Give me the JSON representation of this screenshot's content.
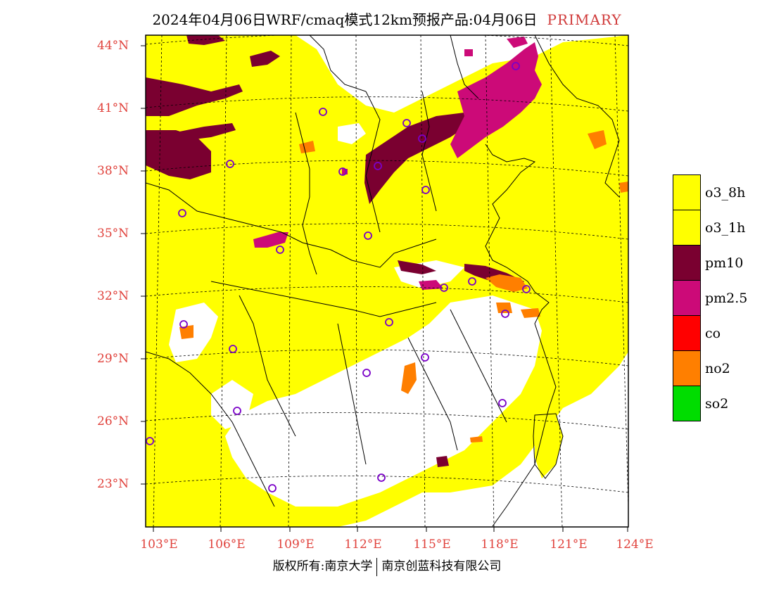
{
  "title": {
    "text": "2024年04月06日WRF/cmaq模式12km预报产品:04月06日",
    "tag": "PRIMARY"
  },
  "lat_labels": [
    "44°N",
    "41°N",
    "38°N",
    "35°N",
    "32°N",
    "29°N",
    "26°N",
    "23°N"
  ],
  "lon_labels": [
    "103°E",
    "106°E",
    "109°E",
    "112°E",
    "115°E",
    "118°E",
    "121°E",
    "124°E"
  ],
  "legend": [
    {
      "label": "o3_8h",
      "color": "#ffff00"
    },
    {
      "label": "o3_1h",
      "color": "#ffff00"
    },
    {
      "label": "pm10",
      "color": "#7a0030"
    },
    {
      "label": "pm2.5",
      "color": "#cc0a78"
    },
    {
      "label": "co",
      "color": "#ff0000"
    },
    {
      "label": "no2",
      "color": "#ff7f00"
    },
    {
      "label": "so2",
      "color": "#00dd00"
    }
  ],
  "colors": {
    "o3": "#ffff00",
    "pm10": "#7a0030",
    "pm25": "#cc0a78",
    "no2": "#ff7f00",
    "station_marker": "#7a00c8",
    "label_red": "#e0413b"
  },
  "copyright": {
    "left": "版权所有:南京大学",
    "right": "南京创蓝科技有限公司"
  }
}
